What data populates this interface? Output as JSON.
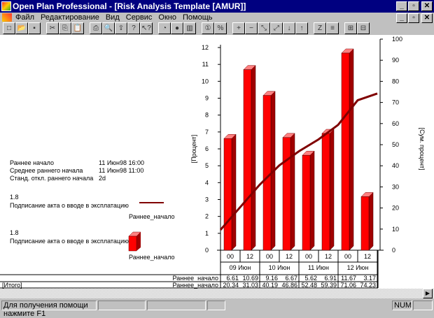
{
  "window": {
    "title": "Open Plan Professional - [Risk Analysis Template [AMUR]]"
  },
  "menu": [
    "Файл",
    "Редактирование",
    "Вид",
    "Сервис",
    "Окно",
    "Помощь"
  ],
  "toolbar_icons": [
    "new-icon",
    "open-icon",
    "save-icon",
    "|",
    "cut-icon",
    "copy-icon",
    "paste-icon",
    "|",
    "print-icon",
    "preview-icon",
    "export-icon",
    "help-icon",
    "context-help-icon",
    "|",
    "clock-icon",
    "globe-icon",
    "chart-icon",
    "|",
    "coin-icon",
    "percent-icon",
    "|",
    "add-icon",
    "remove-icon",
    "link-icon",
    "unlink-icon",
    "move-down-icon",
    "move-up-icon",
    "|",
    "z-icon",
    "text-icon",
    "|",
    "expand-icon",
    "collapse-icon"
  ],
  "stats": [
    {
      "label": "Раннее начало",
      "value": "11 Июн98 16:00"
    },
    {
      "label": "Среднее раннего начала",
      "value": "11 Июн98 11:00"
    },
    {
      "label": "Станд. откл.  раннего начала",
      "value": "2d"
    }
  ],
  "legend": [
    {
      "id": "1.8",
      "name": "Подписание акта о вводе в эксплатацию",
      "series": "Раннее_начало",
      "kind": "line"
    },
    {
      "id": "1.8",
      "name": "Подписание акта о вводе в эксплатацию",
      "series": "Раннее_начало",
      "kind": "bar"
    }
  ],
  "chart_data": {
    "type": "bar+line",
    "categories": [
      "00",
      "12",
      "00",
      "12",
      "00",
      "12",
      "00",
      "12"
    ],
    "date_groups": [
      "09 Июн",
      "10 Июн",
      "11 Июн",
      "12 Июн"
    ],
    "ylabel": "[Процент]",
    "y2label": "[Сум. процент]",
    "ylim": [
      0,
      12
    ],
    "y2lim": [
      0,
      100
    ],
    "yticks": [
      0,
      1,
      2,
      3,
      4,
      5,
      6,
      7,
      8,
      9,
      10,
      11,
      12
    ],
    "y2ticks": [
      0,
      10,
      20,
      30,
      40,
      50,
      60,
      70,
      80,
      90,
      100
    ],
    "series": [
      {
        "name": "Раннее_начало",
        "axis": "left",
        "type": "bar",
        "color": "#ff0000",
        "values": [
          6.61,
          10.69,
          9.16,
          6.67,
          5.62,
          6.91,
          11.67,
          3.17
        ]
      },
      {
        "name": "Раннее_начало",
        "axis": "right",
        "type": "line",
        "color": "#800000",
        "values": [
          20.34,
          31.03,
          40.19,
          46.86,
          52.48,
          59.39,
          71.06,
          74.23
        ]
      }
    ]
  },
  "table": {
    "row1_label": "Раннее_начало",
    "row2_prefix": "[Итого]",
    "row2_label": "Раннее_начало"
  },
  "status": {
    "help": "Для получения помощи нажмите F1",
    "num": "NUM"
  }
}
